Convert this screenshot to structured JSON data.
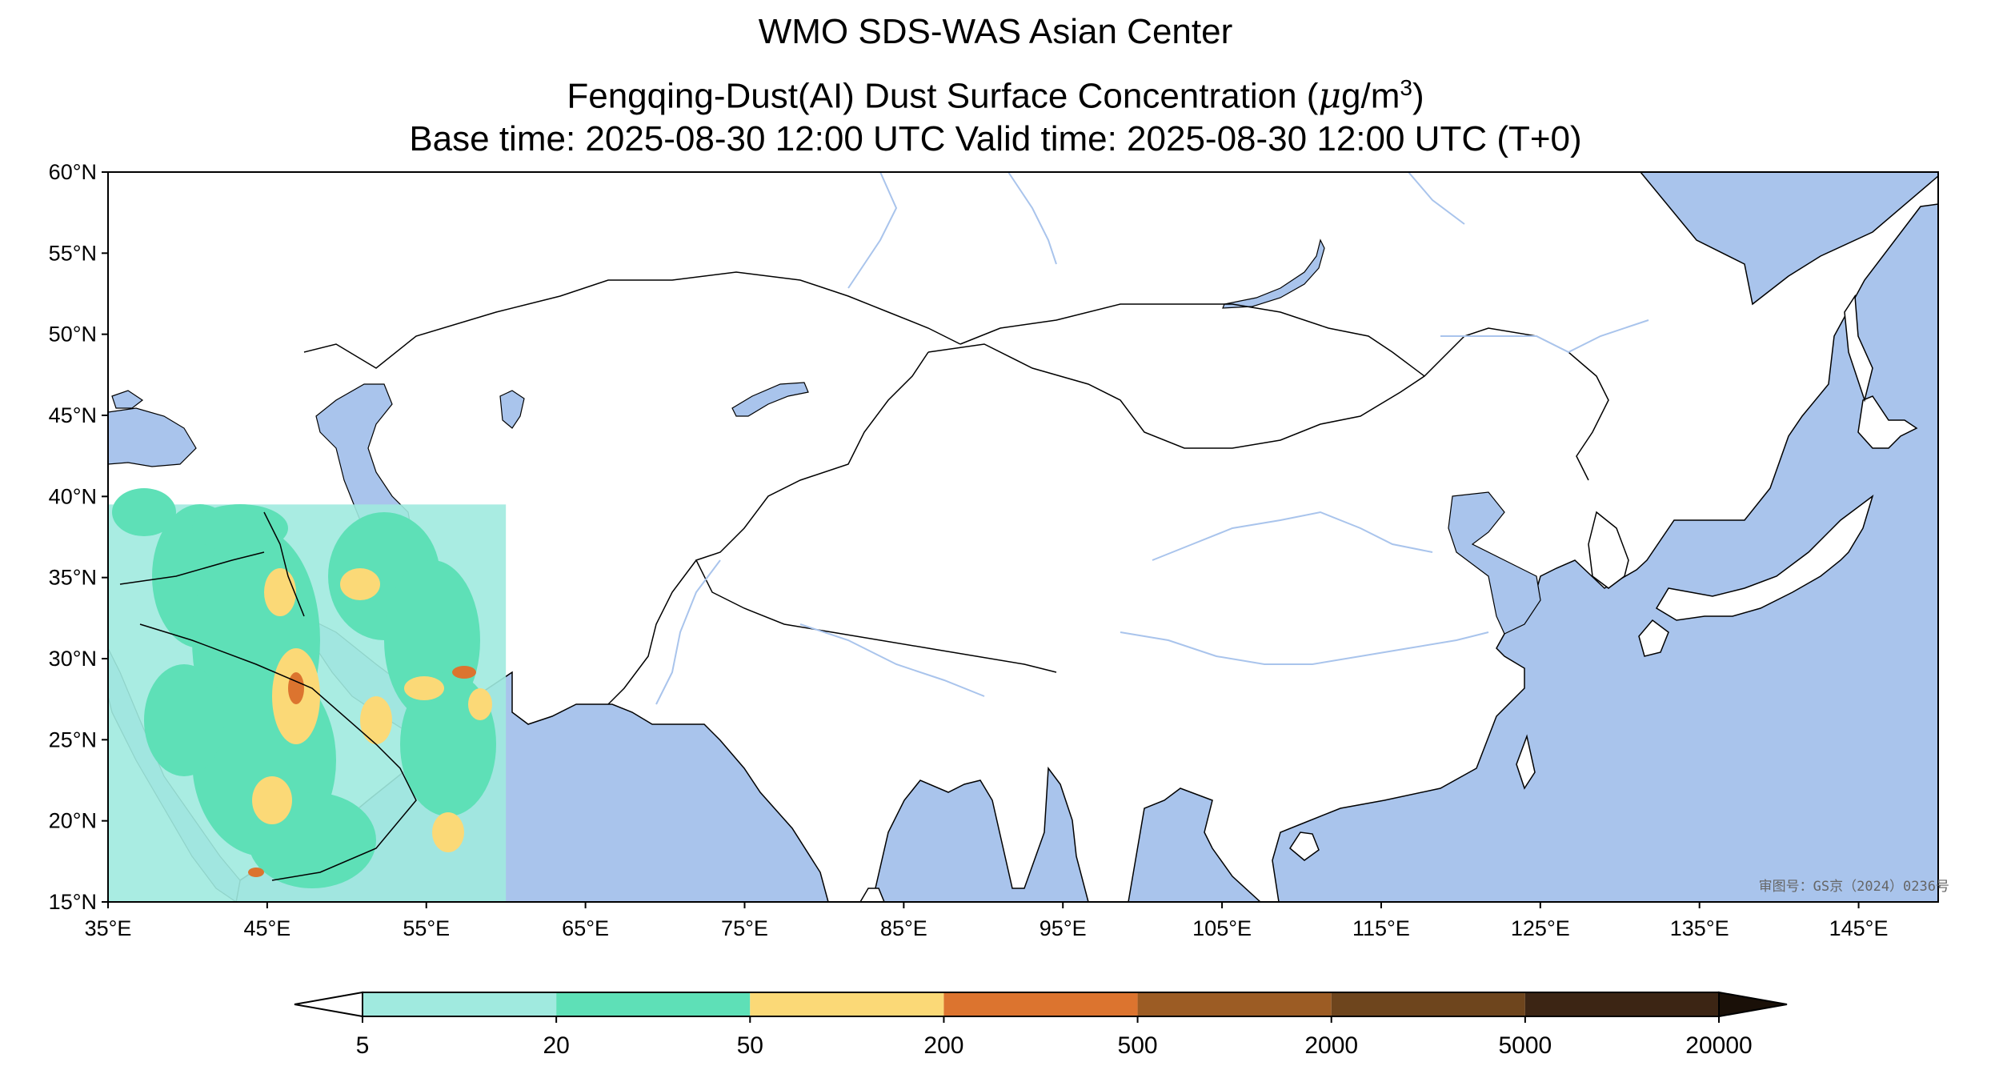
{
  "title": {
    "line1": "WMO SDS-WAS Asian Center",
    "line2_prefix": "Fengqing-Dust(AI) Dust Surface Concentration (",
    "line2_unit_mu": "μ",
    "line2_unit_rest": "g/m",
    "line2_unit_exp": "3",
    "line2_suffix": ")",
    "line3": "Base time: 2025-08-30 12:00 UTC Valid time: 2025-08-30 12:00 UTC (T+0)"
  },
  "map": {
    "lon_range": [
      35,
      150
    ],
    "lat_range": [
      15,
      60
    ],
    "ocean_color": "#a9c4ec",
    "land_color": "#ffffff",
    "river_color": "#a9c4ec",
    "x_ticks": [
      "35°E",
      "45°E",
      "55°E",
      "65°E",
      "75°E",
      "85°E",
      "95°E",
      "105°E",
      "115°E",
      "125°E",
      "135°E",
      "145°E"
    ],
    "y_ticks": [
      "60°N",
      "55°N",
      "50°N",
      "45°N",
      "40°N",
      "35°N",
      "30°N",
      "25°N",
      "20°N",
      "15°N"
    ],
    "x_tick_values": [
      35,
      45,
      55,
      65,
      75,
      85,
      95,
      105,
      115,
      125,
      135,
      145
    ],
    "y_tick_values": [
      60,
      55,
      50,
      45,
      40,
      35,
      30,
      25,
      20,
      15
    ],
    "approval_note": "审图号：GS京（2024）0236号",
    "dust_domain": {
      "lon_min": 35,
      "lon_max": 60,
      "lat_min": 15,
      "lat_max": 40
    }
  },
  "colorbar": {
    "levels": [
      "5",
      "20",
      "50",
      "200",
      "500",
      "2000",
      "5000",
      "20000"
    ],
    "colors": [
      "#a0eadf",
      "#5ee0b7",
      "#fbd977",
      "#dc742f",
      "#9c5c24",
      "#6e451d",
      "#3c2514"
    ],
    "under_color": "#ffffff",
    "over_color": "#1a1008"
  }
}
